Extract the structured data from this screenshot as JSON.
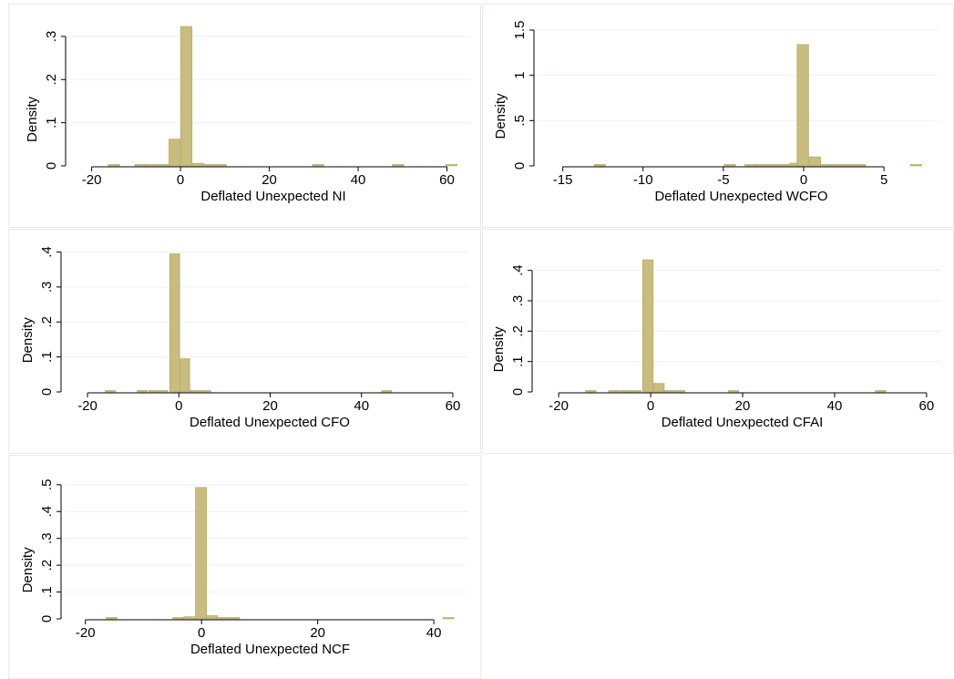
{
  "colors": {
    "bar_fill": "#c8bc7e",
    "bar_stroke": "#b3a463",
    "grid": "#eaf2f3",
    "panel_border": "#e7ebef"
  },
  "chart_data": [
    {
      "type": "bar",
      "xlabel": "Deflated Unexpected NI",
      "ylabel": "Density",
      "xlim": [
        -23,
        64
      ],
      "ylim": [
        0,
        0.34
      ],
      "xticks": [
        -20,
        0,
        20,
        40,
        60
      ],
      "xtick_labels": [
        "-20",
        "0",
        "20",
        "40",
        "60"
      ],
      "yticks": [
        0,
        0.1,
        0.2,
        0.3
      ],
      "ytick_labels": [
        "0",
        ".1",
        ".2",
        ".3"
      ],
      "grid": true,
      "bin_width": 2.6,
      "bins": [
        {
          "x": -15,
          "y": 0.001
        },
        {
          "x": -9,
          "y": 0.001
        },
        {
          "x": -6.5,
          "y": 0.001
        },
        {
          "x": -4,
          "y": 0.001
        },
        {
          "x": -1.3,
          "y": 0.062
        },
        {
          "x": 1.3,
          "y": 0.323
        },
        {
          "x": 3.9,
          "y": 0.006
        },
        {
          "x": 6.5,
          "y": 0.001
        },
        {
          "x": 9.0,
          "y": 0.001
        },
        {
          "x": 31,
          "y": 0.001
        },
        {
          "x": 49,
          "y": 0.001
        },
        {
          "x": 61,
          "y": 0.001
        }
      ]
    },
    {
      "type": "bar",
      "xlabel": "Deflated Unexpected WCFO",
      "ylabel": "Density",
      "xlim": [
        -16,
        8
      ],
      "ylim": [
        0,
        1.5
      ],
      "xticks": [
        -15,
        -10,
        -5,
        0,
        5
      ],
      "xtick_labels": [
        "-15",
        "-10",
        "-5",
        "0",
        "5"
      ],
      "yticks": [
        0,
        0.5,
        1,
        1.5
      ],
      "ytick_labels": [
        "0",
        ".5",
        "1",
        "1.5"
      ],
      "grid": true,
      "bin_width": 0.72,
      "bins": [
        {
          "x": -12.7,
          "y": 0.004
        },
        {
          "x": -4.6,
          "y": 0.004
        },
        {
          "x": -3.3,
          "y": 0.004
        },
        {
          "x": -2.6,
          "y": 0.004
        },
        {
          "x": -1.9,
          "y": 0.004
        },
        {
          "x": -1.2,
          "y": 0.006
        },
        {
          "x": -0.5,
          "y": 0.03
        },
        {
          "x": -0.05,
          "y": 1.34
        },
        {
          "x": 0.7,
          "y": 0.1
        },
        {
          "x": 1.4,
          "y": 0.01
        },
        {
          "x": 2.1,
          "y": 0.004
        },
        {
          "x": 2.8,
          "y": 0.004
        },
        {
          "x": 3.5,
          "y": 0.004
        },
        {
          "x": 7.0,
          "y": 0.004
        }
      ]
    },
    {
      "type": "bar",
      "xlabel": "Deflated Unexpected CFO",
      "ylabel": "Density",
      "xlim": [
        -23,
        62
      ],
      "ylim": [
        0,
        0.43
      ],
      "xticks": [
        -20,
        0,
        20,
        40,
        60
      ],
      "xtick_labels": [
        "-20",
        "0",
        "20",
        "40",
        "60"
      ],
      "yticks": [
        0,
        0.1,
        0.2,
        0.3,
        0.4
      ],
      "ytick_labels": [
        "0",
        ".1",
        ".2",
        ".3",
        ".4"
      ],
      "grid": true,
      "bin_width": 2.2,
      "bins": [
        {
          "x": -15,
          "y": 0.001
        },
        {
          "x": -8,
          "y": 0.001
        },
        {
          "x": -5.5,
          "y": 0.001
        },
        {
          "x": -3.5,
          "y": 0.002
        },
        {
          "x": -0.9,
          "y": 0.395
        },
        {
          "x": 1.3,
          "y": 0.095
        },
        {
          "x": 3.6,
          "y": 0.004
        },
        {
          "x": 5.9,
          "y": 0.002
        },
        {
          "x": 45.5,
          "y": 0.002
        }
      ]
    },
    {
      "type": "bar",
      "xlabel": "Deflated Unexpected CFAI",
      "ylabel": "Density",
      "xlim": [
        -23,
        62
      ],
      "ylim": [
        0,
        0.48
      ],
      "xticks": [
        -20,
        0,
        20,
        40,
        60
      ],
      "xtick_labels": [
        "-20",
        "0",
        "20",
        "40",
        "60"
      ],
      "yticks": [
        0,
        0.1,
        0.2,
        0.3,
        0.4
      ],
      "ytick_labels": [
        "0",
        ".1",
        ".2",
        ".3",
        ".4"
      ],
      "grid": true,
      "bin_width": 2.3,
      "bins": [
        {
          "x": -13,
          "y": 0.001
        },
        {
          "x": -8,
          "y": 0.001
        },
        {
          "x": -5.5,
          "y": 0.001
        },
        {
          "x": -3.2,
          "y": 0.003
        },
        {
          "x": -0.6,
          "y": 0.435
        },
        {
          "x": 1.8,
          "y": 0.028
        },
        {
          "x": 4.0,
          "y": 0.002
        },
        {
          "x": 6.3,
          "y": 0.001
        },
        {
          "x": 18,
          "y": 0.002
        },
        {
          "x": 50,
          "y": 0.002
        }
      ]
    },
    {
      "type": "bar",
      "xlabel": "Deflated Unexpected NCF",
      "ylabel": "Density",
      "xlim": [
        -22,
        45
      ],
      "ylim": [
        0,
        0.53
      ],
      "xticks": [
        -20,
        0,
        20,
        40
      ],
      "xtick_labels": [
        "-20",
        "0",
        "20",
        "40"
      ],
      "yticks": [
        0,
        0.1,
        0.2,
        0.3,
        0.4,
        0.5
      ],
      "ytick_labels": [
        "0",
        ".1",
        ".2",
        ".3",
        ".4",
        ".5"
      ],
      "grid": true,
      "bin_width": 1.9,
      "bins": [
        {
          "x": -15.5,
          "y": 0.002
        },
        {
          "x": -4,
          "y": 0.002
        },
        {
          "x": -2.1,
          "y": 0.008
        },
        {
          "x": -0.1,
          "y": 0.49
        },
        {
          "x": 1.8,
          "y": 0.012
        },
        {
          "x": 3.7,
          "y": 0.004
        },
        {
          "x": 5.6,
          "y": 0.002
        },
        {
          "x": 42.5,
          "y": 0.002
        }
      ]
    }
  ]
}
